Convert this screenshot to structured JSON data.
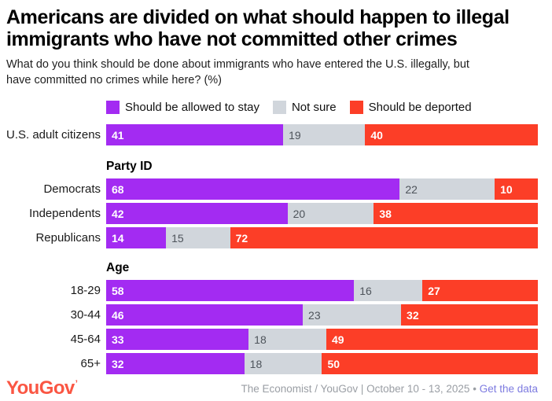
{
  "title": "Americans are divided on what should happen to illegal immigrants who have not committed other crimes",
  "subtitle": "What do you think should be done about immigrants who have entered the U.S. illegally, but have committed no crimes while here? (%)",
  "legend": [
    {
      "key": "stay",
      "label": "Should be allowed to stay",
      "color": "#a32bf2",
      "text_color": "#ffffff"
    },
    {
      "key": "not-sure",
      "label": "Not sure",
      "color": "#d1d6dc",
      "text_color": "#4e545b"
    },
    {
      "key": "deported",
      "label": "Should be deported",
      "color": "#fc3e27",
      "text_color": "#ffffff"
    }
  ],
  "chart_data": {
    "type": "bar",
    "subtype": "horizontal-stacked",
    "unit": "%",
    "xlim": [
      0,
      100
    ],
    "series_names": [
      "Should be allowed to stay",
      "Not sure",
      "Should be deported"
    ],
    "groups": [
      {
        "header": "",
        "rows": [
          {
            "label": "U.S. adult citizens",
            "values": [
              41,
              19,
              40
            ]
          }
        ]
      },
      {
        "header": "Party ID",
        "rows": [
          {
            "label": "Democrats",
            "values": [
              68,
              22,
              10
            ]
          },
          {
            "label": "Independents",
            "values": [
              42,
              20,
              38
            ]
          },
          {
            "label": "Republicans",
            "values": [
              14,
              15,
              72
            ]
          }
        ]
      },
      {
        "header": "Age",
        "rows": [
          {
            "label": "18-29",
            "values": [
              58,
              16,
              27
            ]
          },
          {
            "label": "30-44",
            "values": [
              46,
              23,
              32
            ]
          },
          {
            "label": "45-64",
            "values": [
              33,
              18,
              49
            ]
          },
          {
            "label": "65+",
            "values": [
              32,
              18,
              50
            ]
          }
        ]
      }
    ]
  },
  "footer": {
    "logo": "YouGov",
    "logo_tick": "’",
    "logo_color": "#fa5643",
    "source": "The Economist / YouGov | October 10 - 13, 2025",
    "separator": " • ",
    "link_label": "Get the data",
    "link_color": "#7d7be0"
  }
}
